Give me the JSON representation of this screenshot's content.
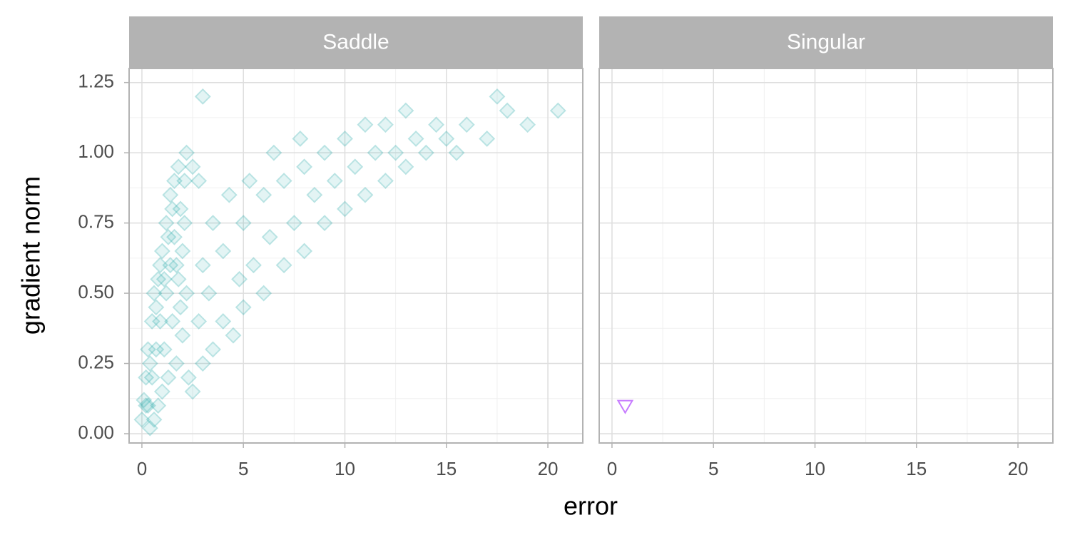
{
  "chart_data": [
    {
      "type": "scatter",
      "title": "Saddle",
      "marker": "diamond",
      "color": "#1aa5a5",
      "alpha": 0.3,
      "xlabel": "error",
      "ylabel": "gradient norm",
      "x": [
        0,
        0.1,
        0.2,
        0.3,
        0.3,
        0.4,
        0.5,
        0.5,
        0.6,
        0.6,
        0.7,
        0.8,
        0.8,
        0.9,
        1.0,
        1.0,
        1.1,
        1.2,
        1.2,
        1.3,
        1.4,
        1.4,
        1.5,
        1.6,
        1.6,
        1.7,
        1.8,
        1.8,
        1.9,
        2.0,
        2.0,
        2.1,
        2.2,
        2.2,
        2.3,
        0.2,
        0.4,
        0.7,
        0.9,
        1.1,
        1.3,
        1.5,
        1.7,
        1.9,
        2.1,
        2.5,
        2.8,
        3,
        3,
        3.3,
        3.5,
        3.5,
        4,
        4,
        4.3,
        4.5,
        4.8,
        5,
        5,
        5.3,
        5.5,
        6,
        6,
        6.3,
        6.5,
        7,
        7,
        7.5,
        7.8,
        8,
        8,
        8.5,
        9,
        9,
        9.5,
        10,
        10,
        10.5,
        11,
        11,
        11.5,
        12,
        12,
        12.5,
        13,
        13,
        13.5,
        14,
        14.5,
        15,
        15.5,
        16,
        17,
        17.5,
        18,
        19,
        20.5,
        3,
        2.8,
        2.5
      ],
      "y": [
        0.05,
        0.12,
        0.2,
        0.1,
        0.3,
        0.02,
        0.2,
        0.4,
        0.05,
        0.5,
        0.3,
        0.1,
        0.55,
        0.4,
        0.15,
        0.65,
        0.3,
        0.5,
        0.75,
        0.2,
        0.6,
        0.85,
        0.4,
        0.7,
        0.9,
        0.25,
        0.55,
        0.95,
        0.8,
        0.35,
        0.65,
        0.9,
        0.5,
        1.0,
        0.2,
        0.1,
        0.25,
        0.45,
        0.6,
        0.55,
        0.7,
        0.8,
        0.6,
        0.45,
        0.75,
        0.15,
        0.4,
        0.25,
        0.6,
        0.5,
        0.3,
        0.75,
        0.4,
        0.65,
        0.85,
        0.35,
        0.55,
        0.45,
        0.75,
        0.9,
        0.6,
        0.5,
        0.85,
        0.7,
        1.0,
        0.6,
        0.9,
        0.75,
        1.05,
        0.65,
        0.95,
        0.85,
        0.75,
        1.0,
        0.9,
        0.8,
        1.05,
        0.95,
        0.85,
        1.1,
        1.0,
        0.9,
        1.1,
        1.0,
        0.95,
        1.15,
        1.05,
        1.0,
        1.1,
        1.05,
        1.0,
        1.1,
        1.05,
        1.2,
        1.15,
        1.1,
        1.15,
        1.2,
        0.9,
        0.95
      ],
      "xlim": [
        -0.63,
        21.72
      ],
      "ylim": [
        -0.033,
        1.3
      ],
      "xticks": [
        0,
        5,
        10,
        15,
        20
      ],
      "yticks": [
        {
          "value": 0,
          "label": "0.00"
        },
        {
          "value": 0.25,
          "label": "0.25"
        },
        {
          "value": 0.5,
          "label": "0.50"
        },
        {
          "value": 0.75,
          "label": "0.75"
        },
        {
          "value": 1,
          "label": "1.00"
        },
        {
          "value": 1.25,
          "label": "1.25"
        }
      ],
      "xminorticks": [
        2.5,
        7.5,
        12.5,
        17.5
      ],
      "yminorticks": [
        0.125,
        0.375,
        0.625,
        0.875,
        1.125
      ],
      "grid": true
    },
    {
      "type": "scatter",
      "title": "Singular",
      "marker": "triangle-down",
      "color": "#c77cff",
      "alpha": 1,
      "x": [
        0.65
      ],
      "y": [
        0.1
      ],
      "xlim": [
        -0.63,
        21.72
      ],
      "ylim": [
        -0.033,
        1.3
      ],
      "xticks": [
        0,
        5,
        10,
        15,
        20
      ],
      "yticks": [
        {
          "value": 0,
          "label": "0.00"
        },
        {
          "value": 0.25,
          "label": "0.25"
        },
        {
          "value": 0.5,
          "label": "0.50"
        },
        {
          "value": 0.75,
          "label": "0.75"
        },
        {
          "value": 1,
          "label": "1.00"
        },
        {
          "value": 1.25,
          "label": "1.25"
        }
      ],
      "xminorticks": [
        2.5,
        7.5,
        12.5,
        17.5
      ],
      "yminorticks": [
        0.125,
        0.375,
        0.625,
        0.875,
        1.125
      ],
      "grid": true
    }
  ]
}
